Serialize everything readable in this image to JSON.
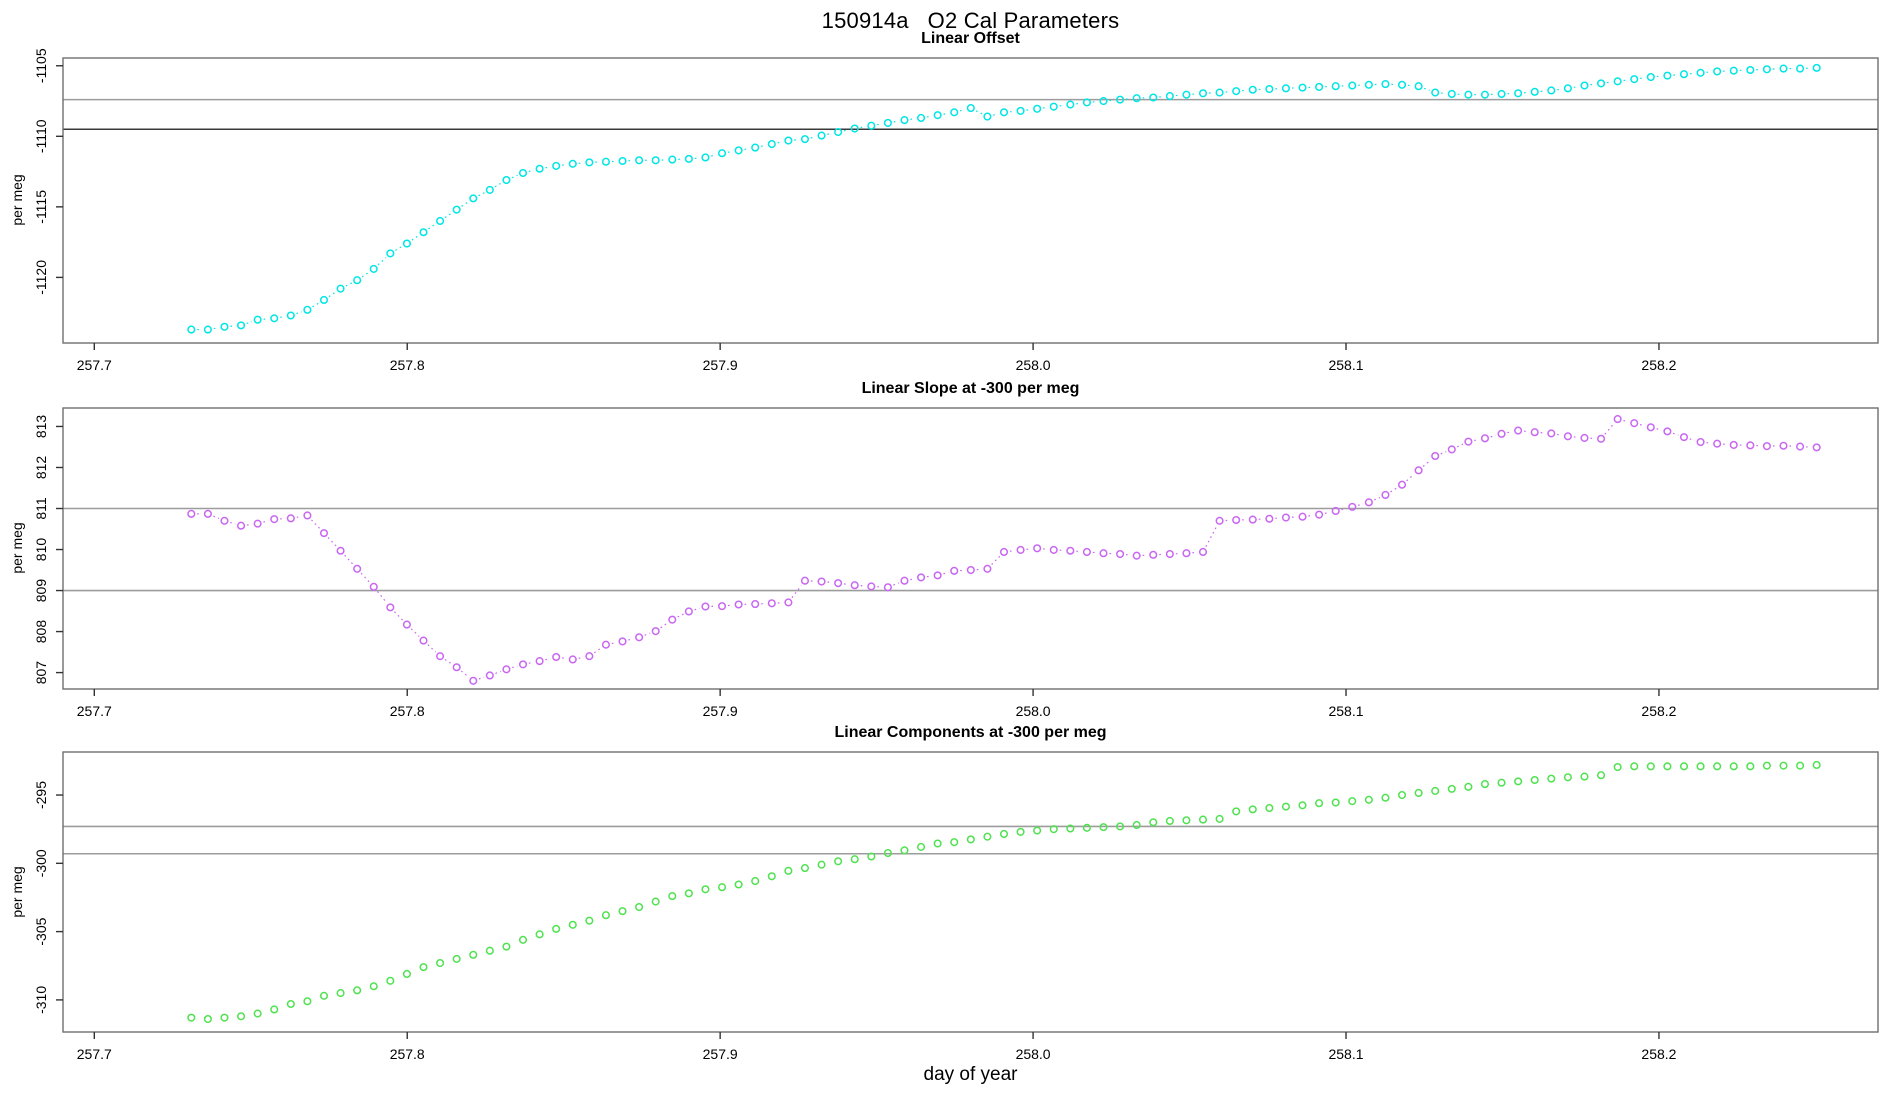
{
  "title": "150914a   O2 Cal Parameters",
  "chart_data": {
    "type": "scatter",
    "xlabel": "day of year",
    "xlim": [
      257.69,
      258.27
    ],
    "x_ticks": [
      257.7,
      257.8,
      257.9,
      258.0,
      258.1,
      258.2
    ],
    "x_tick_labels": [
      "257.7",
      "257.8",
      "257.9",
      "258.0",
      "258.1",
      "258.2"
    ],
    "x": [
      257.731,
      257.7363,
      257.7416,
      257.7469,
      257.7522,
      257.7575,
      257.7628,
      257.7681,
      257.7734,
      257.7787,
      257.784,
      257.7893,
      257.7946,
      257.7999,
      257.8052,
      257.8105,
      257.8158,
      257.8211,
      257.8264,
      257.8317,
      257.837,
      257.8423,
      257.8476,
      257.8529,
      257.8582,
      257.8635,
      257.8688,
      257.8741,
      257.8794,
      257.8847,
      257.89,
      257.8953,
      257.9006,
      257.9059,
      257.9112,
      257.9165,
      257.9218,
      257.9271,
      257.9324,
      257.9377,
      257.943,
      257.9483,
      257.9536,
      257.9589,
      257.9642,
      257.9695,
      257.9748,
      257.9801,
      257.9854,
      257.9907,
      257.996,
      258.0013,
      258.0066,
      258.0119,
      258.0172,
      258.0225,
      258.0278,
      258.0331,
      258.0384,
      258.0437,
      258.049,
      258.0543,
      258.0596,
      258.0649,
      258.0702,
      258.0755,
      258.0808,
      258.0861,
      258.0914,
      258.0967,
      258.102,
      258.1073,
      258.1126,
      258.1179,
      258.1232,
      258.1285,
      258.1338,
      258.1391,
      258.1444,
      258.1497,
      258.155,
      258.1603,
      258.1656,
      258.1709,
      258.1762,
      258.1815,
      258.1868,
      258.1921,
      258.1974,
      258.2027,
      258.208,
      258.2133,
      258.2186,
      258.2239,
      258.2292,
      258.2345,
      258.2398,
      258.2451,
      258.2504
    ],
    "panels": [
      {
        "title": "Linear Offset",
        "ylabel": "per meg",
        "color": "#00E5E5",
        "connect": true,
        "ylim": [
          -1124.65,
          -1104.45
        ],
        "y_ticks": [
          -1105,
          -1110,
          -1115,
          -1120
        ],
        "y_tick_labels": [
          "-1105",
          "-1110",
          "-1115",
          "-1120"
        ],
        "ref_lines": [
          {
            "y": -1107.4,
            "color": "#9c9c9c"
          },
          {
            "y": -1109.5,
            "color": "#3a3a3a"
          }
        ],
        "y": [
          -1123.7,
          -1123.7,
          -1123.5,
          -1123.4,
          -1123.0,
          -1122.9,
          -1122.7,
          -1122.3,
          -1121.6,
          -1120.8,
          -1120.2,
          -1119.4,
          -1118.3,
          -1117.6,
          -1116.8,
          -1116.0,
          -1115.2,
          -1114.4,
          -1113.8,
          -1113.1,
          -1112.6,
          -1112.3,
          -1112.1,
          -1111.95,
          -1111.85,
          -1111.8,
          -1111.75,
          -1111.7,
          -1111.7,
          -1111.65,
          -1111.6,
          -1111.5,
          -1111.2,
          -1111.0,
          -1110.8,
          -1110.55,
          -1110.3,
          -1110.2,
          -1109.95,
          -1109.7,
          -1109.45,
          -1109.25,
          -1109.05,
          -1108.85,
          -1108.7,
          -1108.5,
          -1108.3,
          -1108.0,
          -1108.6,
          -1108.3,
          -1108.2,
          -1108.05,
          -1107.9,
          -1107.75,
          -1107.6,
          -1107.5,
          -1107.4,
          -1107.3,
          -1107.25,
          -1107.15,
          -1107.05,
          -1106.95,
          -1106.9,
          -1106.8,
          -1106.7,
          -1106.65,
          -1106.6,
          -1106.55,
          -1106.5,
          -1106.45,
          -1106.4,
          -1106.35,
          -1106.3,
          -1106.35,
          -1106.45,
          -1106.9,
          -1107.0,
          -1107.05,
          -1107.05,
          -1107.0,
          -1106.95,
          -1106.85,
          -1106.75,
          -1106.6,
          -1106.4,
          -1106.25,
          -1106.1,
          -1105.95,
          -1105.8,
          -1105.7,
          -1105.6,
          -1105.5,
          -1105.4,
          -1105.35,
          -1105.3,
          -1105.25,
          -1105.2,
          -1105.2,
          -1105.15
        ]
      },
      {
        "title": "Linear Slope at -300 per meg",
        "ylabel": "per meg",
        "color": "#C966F2",
        "connect": true,
        "ylim": [
          806.6,
          813.45
        ],
        "y_ticks": [
          807,
          808,
          809,
          810,
          811,
          812,
          813
        ],
        "y_tick_labels": [
          "807",
          "808",
          "809",
          "810",
          "811",
          "812",
          "813"
        ],
        "ref_lines": [
          {
            "y": 811,
            "color": "#9c9c9c"
          },
          {
            "y": 809,
            "color": "#9c9c9c"
          }
        ],
        "y": [
          810.87,
          810.87,
          810.7,
          810.58,
          810.63,
          810.74,
          810.76,
          810.83,
          810.4,
          809.97,
          809.53,
          809.09,
          808.59,
          808.17,
          807.78,
          807.4,
          807.13,
          806.8,
          806.93,
          807.08,
          807.2,
          807.28,
          807.38,
          807.32,
          807.4,
          807.68,
          807.76,
          807.86,
          808.01,
          808.29,
          808.49,
          808.61,
          808.62,
          808.66,
          808.67,
          808.69,
          808.71,
          809.24,
          809.22,
          809.18,
          809.13,
          809.1,
          809.08,
          809.24,
          809.32,
          809.37,
          809.48,
          809.5,
          809.53,
          809.94,
          809.99,
          810.03,
          809.99,
          809.97,
          809.94,
          809.91,
          809.89,
          809.85,
          809.87,
          809.89,
          809.91,
          809.94,
          810.7,
          810.72,
          810.73,
          810.75,
          810.78,
          810.8,
          810.85,
          810.94,
          811.04,
          811.15,
          811.33,
          811.58,
          811.93,
          812.28,
          812.44,
          812.63,
          812.71,
          812.82,
          812.9,
          812.86,
          812.83,
          812.76,
          812.72,
          812.7,
          813.18,
          813.08,
          812.98,
          812.88,
          812.74,
          812.62,
          812.58,
          812.55,
          812.54,
          812.52,
          812.53,
          812.51,
          812.49
        ]
      },
      {
        "title": "Linear Components at -300 per meg",
        "ylabel": "per meg",
        "color": "#4FE24F",
        "connect": false,
        "ylim": [
          -312.35,
          -291.85
        ],
        "y_ticks": [
          -295,
          -300,
          -305,
          -310
        ],
        "y_tick_labels": [
          "-295",
          "-300",
          "-305",
          "-310"
        ],
        "ref_lines": [
          {
            "y": -297.3,
            "color": "#9c9c9c"
          },
          {
            "y": -299.3,
            "color": "#9c9c9c"
          }
        ],
        "y": [
          -311.3,
          -311.4,
          -311.3,
          -311.2,
          -311.0,
          -310.7,
          -310.3,
          -310.1,
          -309.7,
          -309.5,
          -309.3,
          -309.0,
          -308.6,
          -308.1,
          -307.6,
          -307.3,
          -307.0,
          -306.7,
          -306.4,
          -306.1,
          -305.6,
          -305.2,
          -304.8,
          -304.5,
          -304.2,
          -303.8,
          -303.5,
          -303.2,
          -302.8,
          -302.4,
          -302.2,
          -301.9,
          -301.75,
          -301.55,
          -301.3,
          -300.95,
          -300.55,
          -300.35,
          -300.1,
          -299.85,
          -299.7,
          -299.5,
          -299.25,
          -299.05,
          -298.8,
          -298.55,
          -298.45,
          -298.25,
          -298.05,
          -297.85,
          -297.7,
          -297.6,
          -297.5,
          -297.45,
          -297.4,
          -297.35,
          -297.3,
          -297.2,
          -297.0,
          -296.9,
          -296.85,
          -296.8,
          -296.75,
          -296.2,
          -296.05,
          -295.95,
          -295.85,
          -295.75,
          -295.6,
          -295.55,
          -295.45,
          -295.35,
          -295.2,
          -295.0,
          -294.85,
          -294.7,
          -294.55,
          -294.4,
          -294.2,
          -294.1,
          -294.0,
          -293.9,
          -293.8,
          -293.7,
          -293.65,
          -293.55,
          -292.95,
          -292.9,
          -292.9,
          -292.9,
          -292.9,
          -292.9,
          -292.9,
          -292.9,
          -292.9,
          -292.85,
          -292.85,
          -292.85,
          -292.8
        ]
      }
    ]
  }
}
